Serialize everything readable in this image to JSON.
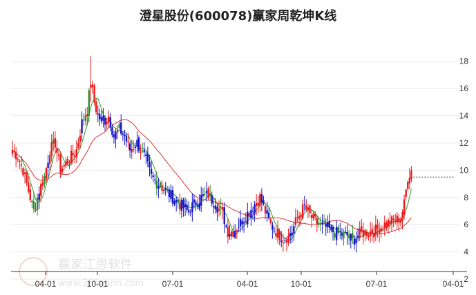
{
  "chart_data": {
    "type": "candlestick",
    "title": "澄星股份(600078)赢家周乾坤K线",
    "ylim": [
      2,
      19
    ],
    "y_ticks": [
      2,
      4,
      6,
      8,
      10,
      12,
      14,
      16,
      18
    ],
    "x_ticks": [
      "04-01",
      "10-01",
      "07-01",
      "04-01",
      "10-01",
      "07-01",
      "04-01"
    ],
    "colors": {
      "up": "#e8191b",
      "down": "#1414c8",
      "green": "#2e8b2e",
      "ma_green": "#2f9a2f",
      "ma_red": "#e03030"
    },
    "close_trace": [
      [
        0,
        11.5
      ],
      [
        3,
        11.0
      ],
      [
        6,
        10.0
      ],
      [
        9,
        8.5
      ],
      [
        12,
        7.0
      ],
      [
        15,
        8.5
      ],
      [
        18,
        9.5
      ],
      [
        21,
        11.5
      ],
      [
        24,
        12.0
      ],
      [
        27,
        10.0
      ],
      [
        30,
        10.5
      ],
      [
        33,
        11.0
      ],
      [
        36,
        11.5
      ],
      [
        39,
        13.5
      ],
      [
        42,
        14.5
      ],
      [
        44,
        16.5
      ],
      [
        46,
        15.0
      ],
      [
        48,
        14.0
      ],
      [
        51,
        13.5
      ],
      [
        54,
        14.0
      ],
      [
        57,
        12.5
      ],
      [
        60,
        13.0
      ],
      [
        63,
        12.5
      ],
      [
        66,
        11.5
      ],
      [
        70,
        12.0
      ],
      [
        74,
        11.0
      ],
      [
        78,
        9.5
      ],
      [
        82,
        9.0
      ],
      [
        86,
        8.5
      ],
      [
        90,
        8.0
      ],
      [
        94,
        7.5
      ],
      [
        98,
        7.0
      ],
      [
        102,
        7.5
      ],
      [
        106,
        8.0
      ],
      [
        110,
        8.2
      ],
      [
        114,
        7.5
      ],
      [
        118,
        6.8
      ],
      [
        121,
        5.5
      ],
      [
        124,
        5.5
      ],
      [
        127,
        6.0
      ],
      [
        130,
        6.5
      ],
      [
        133,
        7.0
      ],
      [
        136,
        7.5
      ],
      [
        139,
        8.0
      ],
      [
        142,
        7.0
      ],
      [
        145,
        6.0
      ],
      [
        148,
        5.5
      ],
      [
        152,
        5.0
      ],
      [
        156,
        5.2
      ],
      [
        160,
        6.5
      ],
      [
        164,
        7.3
      ],
      [
        168,
        6.5
      ],
      [
        172,
        6.0
      ],
      [
        176,
        5.8
      ],
      [
        180,
        5.5
      ],
      [
        184,
        5.3
      ],
      [
        188,
        5.2
      ],
      [
        191,
        4.8
      ],
      [
        194,
        5.2
      ],
      [
        197,
        5.4
      ],
      [
        200,
        5.5
      ],
      [
        203,
        5.5
      ],
      [
        206,
        5.8
      ],
      [
        209,
        6.0
      ],
      [
        212,
        6.2
      ],
      [
        215,
        6.3
      ],
      [
        218,
        6.5
      ],
      [
        220,
        7.5
      ],
      [
        222,
        9.5
      ],
      [
        224,
        10.0
      ]
    ],
    "last_price": 9.5
  }
}
